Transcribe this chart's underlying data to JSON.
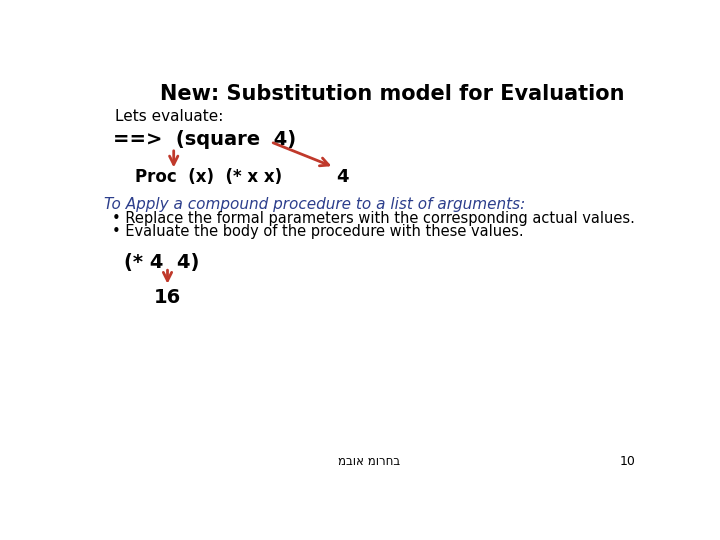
{
  "title": "New: Substitution model for Evaluation",
  "bg_color": "#ffffff",
  "title_color": "#000000",
  "title_fontsize": 15,
  "lets_evaluate": "Lets evaluate:",
  "lets_color": "#000000",
  "lets_fontsize": 11,
  "line1_code": "==>  (square  4)",
  "line1_color": "#000000",
  "line1_fontsize": 14,
  "line2_code": "Proc  (x)  (* x x)",
  "line2_color": "#000000",
  "line2_fontsize": 12,
  "line2_num": "4",
  "line2_num_color": "#000000",
  "line2_num_fontsize": 13,
  "arrow_color": "#c0392b",
  "apply_line": "To Apply a compound procedure to a list of arguments:",
  "apply_color": "#2c3e8c",
  "apply_fontsize": 11,
  "bullet1": "Replace the formal parameters with the corresponding actual values.",
  "bullet2": "Evaluate the body of the procedure with these values.",
  "bullet_color": "#000000",
  "bullet_fontsize": 10.5,
  "code2_line1": "(* 4  4)",
  "code2_color": "#000000",
  "code2_fontsize": 14,
  "code2_line2": "16",
  "code2_line2_color": "#000000",
  "code2_line2_fontsize": 14,
  "footer_text": "מבוא מורחב",
  "footer_color": "#000000",
  "footer_fontsize": 8.5,
  "page_num": "10",
  "page_num_color": "#000000",
  "page_num_fontsize": 9
}
